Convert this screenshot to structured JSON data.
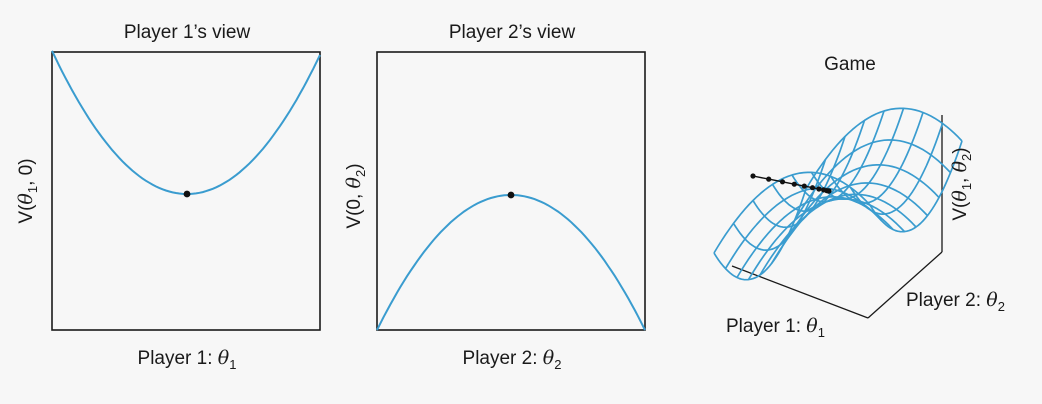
{
  "panels": [
    {
      "title": "Player 1’s view",
      "ylabel_pre": "V(",
      "ylabel_math": "θ",
      "ylabel_sub": "1",
      "ylabel_post": ", 0)",
      "xlabel_pre": "Player 1: ",
      "xlabel_math": "θ",
      "xlabel_sub": "1",
      "curve": "convex parabola",
      "marker": "minimum"
    },
    {
      "title": "Player 2’s view",
      "ylabel_pre": "V(0, ",
      "ylabel_math": "θ",
      "ylabel_sub": "2",
      "ylabel_post": ")",
      "xlabel_pre": "Player 2: ",
      "xlabel_math": "θ",
      "xlabel_sub": "2",
      "curve": "concave parabola",
      "marker": "maximum"
    }
  ],
  "game": {
    "title": "Game",
    "zlabel_pre": "V(",
    "zlabel_m1": "θ",
    "zlabel_s1": "1",
    "zlabel_mid": ", ",
    "zlabel_m2": "θ",
    "zlabel_s2": "2",
    "zlabel_post": ")",
    "xlabel_pre": "Player 1: ",
    "xlabel_math": "θ",
    "xlabel_sub": "1",
    "ylabel_pre": "Player 2: ",
    "ylabel_math": "θ",
    "ylabel_sub": "2",
    "surface": "saddle"
  },
  "colors": {
    "curve": "#3a9ccf",
    "marker": "#111111",
    "axes": "#1a1a1a"
  }
}
